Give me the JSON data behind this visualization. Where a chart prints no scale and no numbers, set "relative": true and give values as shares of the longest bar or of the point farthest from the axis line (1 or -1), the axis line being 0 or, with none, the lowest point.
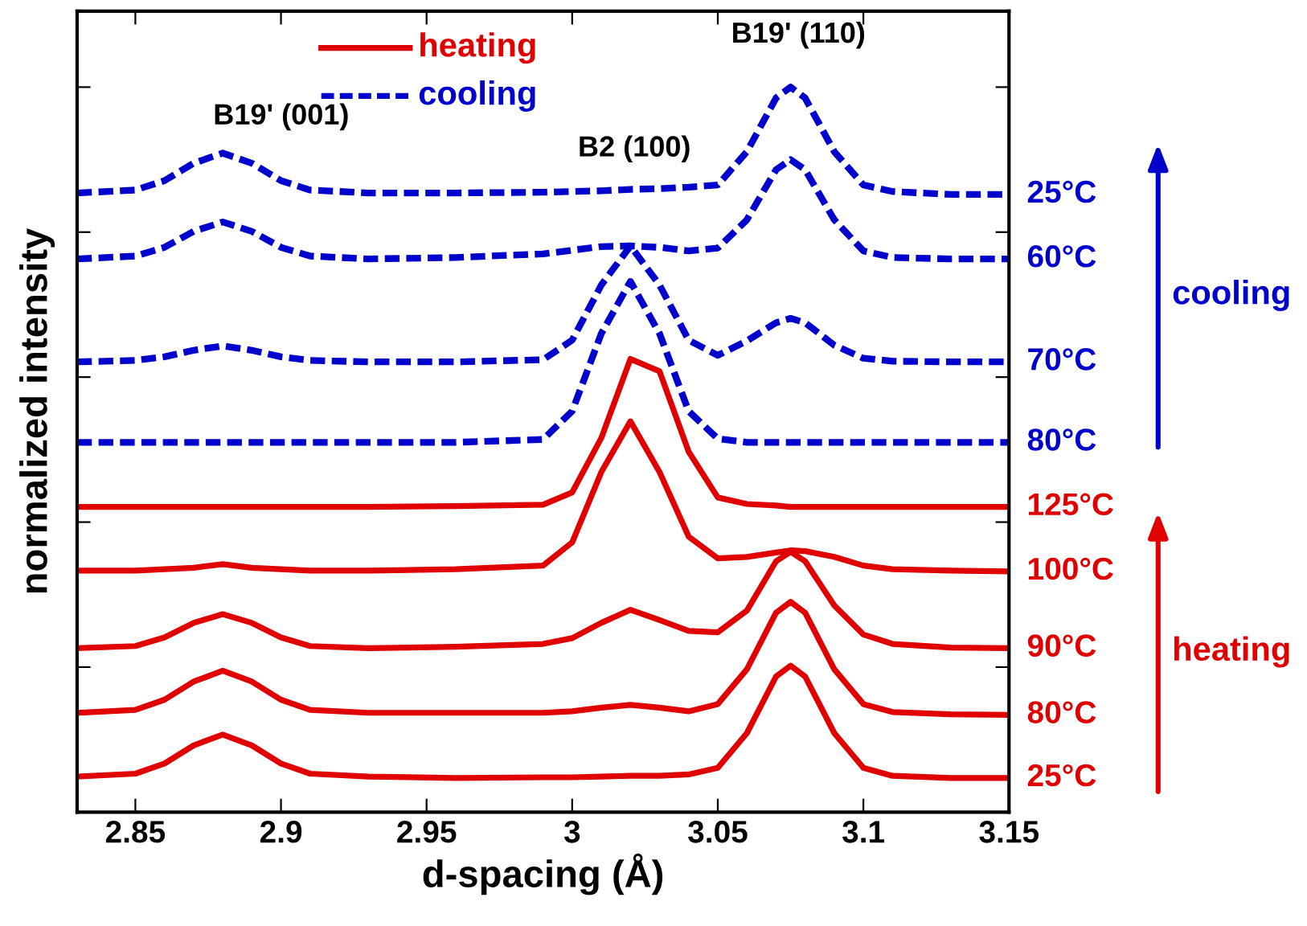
{
  "chart_data": {
    "type": "line",
    "xlabel": "d-spacing (Å)",
    "ylabel": "normalized intensity",
    "relative": true,
    "tick_labels": "x",
    "grid": false,
    "legend": "right",
    "marker": "none",
    "xlim": [
      2.83,
      3.15
    ],
    "xticks": [
      2.85,
      2.9,
      2.95,
      3,
      3.05,
      3.1,
      3.15
    ],
    "x": [
      2.83,
      2.85,
      2.86,
      2.87,
      2.88,
      2.89,
      2.9,
      2.91,
      2.93,
      2.96,
      2.99,
      3.0,
      3.01,
      3.02,
      3.03,
      3.04,
      3.05,
      3.06,
      3.07,
      3.075,
      3.08,
      3.09,
      3.1,
      3.11,
      3.13,
      3.15
    ],
    "series": [
      {
        "name": "25°C",
        "color": "#e00000",
        "line_style": "solid",
        "values": [
          0.049,
          0.053,
          0.067,
          0.092,
          0.107,
          0.092,
          0.067,
          0.053,
          0.049,
          0.047,
          0.048,
          0.048,
          0.049,
          0.05,
          0.05,
          0.052,
          0.061,
          0.109,
          0.187,
          0.202,
          0.187,
          0.109,
          0.061,
          0.05,
          0.047,
          0.047
        ]
      },
      {
        "name": "80°C",
        "color": "#e00000",
        "line_style": "solid",
        "values": [
          0.137,
          0.141,
          0.155,
          0.18,
          0.195,
          0.18,
          0.155,
          0.141,
          0.137,
          0.137,
          0.137,
          0.139,
          0.144,
          0.148,
          0.144,
          0.139,
          0.149,
          0.197,
          0.275,
          0.29,
          0.275,
          0.197,
          0.149,
          0.138,
          0.135,
          0.134
        ]
      },
      {
        "name": "90°C",
        "color": "#e00000",
        "line_style": "solid",
        "values": [
          0.226,
          0.229,
          0.241,
          0.261,
          0.273,
          0.261,
          0.241,
          0.229,
          0.226,
          0.228,
          0.232,
          0.24,
          0.261,
          0.279,
          0.265,
          0.25,
          0.248,
          0.278,
          0.346,
          0.359,
          0.346,
          0.285,
          0.245,
          0.232,
          0.227,
          0.226
        ]
      },
      {
        "name": "100°C",
        "color": "#e00000",
        "line_style": "solid",
        "values": [
          0.333,
          0.333,
          0.335,
          0.337,
          0.342,
          0.337,
          0.335,
          0.333,
          0.333,
          0.335,
          0.34,
          0.372,
          0.469,
          0.539,
          0.469,
          0.38,
          0.35,
          0.352,
          0.358,
          0.361,
          0.36,
          0.352,
          0.34,
          0.335,
          0.333,
          0.332
        ]
      },
      {
        "name": "125°C",
        "color": "#e00000",
        "line_style": "solid",
        "values": [
          0.421,
          0.421,
          0.421,
          0.421,
          0.421,
          0.421,
          0.421,
          0.421,
          0.421,
          0.422,
          0.424,
          0.441,
          0.516,
          0.625,
          0.608,
          0.497,
          0.434,
          0.425,
          0.423,
          0.421,
          0.421,
          0.421,
          0.421,
          0.421,
          0.421,
          0.421
        ]
      },
      {
        "name": "80°C",
        "color": "#0000cc",
        "line_style": "dashed",
        "values": [
          0.51,
          0.51,
          0.51,
          0.51,
          0.51,
          0.51,
          0.51,
          0.51,
          0.51,
          0.51,
          0.514,
          0.553,
          0.66,
          0.732,
          0.66,
          0.553,
          0.515,
          0.51,
          0.51,
          0.51,
          0.51,
          0.51,
          0.51,
          0.51,
          0.51,
          0.51
        ]
      },
      {
        "name": "70°C",
        "color": "#0000cc",
        "line_style": "dashed",
        "values": [
          0.621,
          0.623,
          0.628,
          0.637,
          0.643,
          0.637,
          0.628,
          0.623,
          0.621,
          0.621,
          0.624,
          0.651,
          0.727,
          0.781,
          0.727,
          0.651,
          0.63,
          0.65,
          0.675,
          0.681,
          0.675,
          0.644,
          0.626,
          0.622,
          0.621,
          0.621
        ]
      },
      {
        "name": "60°C",
        "color": "#0000cc",
        "line_style": "dashed",
        "values": [
          0.763,
          0.767,
          0.779,
          0.801,
          0.814,
          0.801,
          0.779,
          0.767,
          0.763,
          0.765,
          0.77,
          0.775,
          0.78,
          0.781,
          0.779,
          0.774,
          0.778,
          0.817,
          0.886,
          0.9,
          0.886,
          0.817,
          0.774,
          0.765,
          0.763,
          0.763
        ]
      },
      {
        "name": "25°C",
        "color": "#0000cc",
        "line_style": "dashed",
        "values": [
          0.854,
          0.858,
          0.871,
          0.895,
          0.909,
          0.895,
          0.871,
          0.858,
          0.854,
          0.854,
          0.855,
          0.856,
          0.857,
          0.859,
          0.86,
          0.862,
          0.865,
          0.911,
          0.985,
          1.0,
          0.985,
          0.911,
          0.865,
          0.856,
          0.852,
          0.852
        ]
      }
    ],
    "annotations": [
      "B19' (001)",
      "B2 (100)",
      "B19' (110)",
      "heating",
      "cooling",
      "heating",
      "cooling"
    ]
  }
}
